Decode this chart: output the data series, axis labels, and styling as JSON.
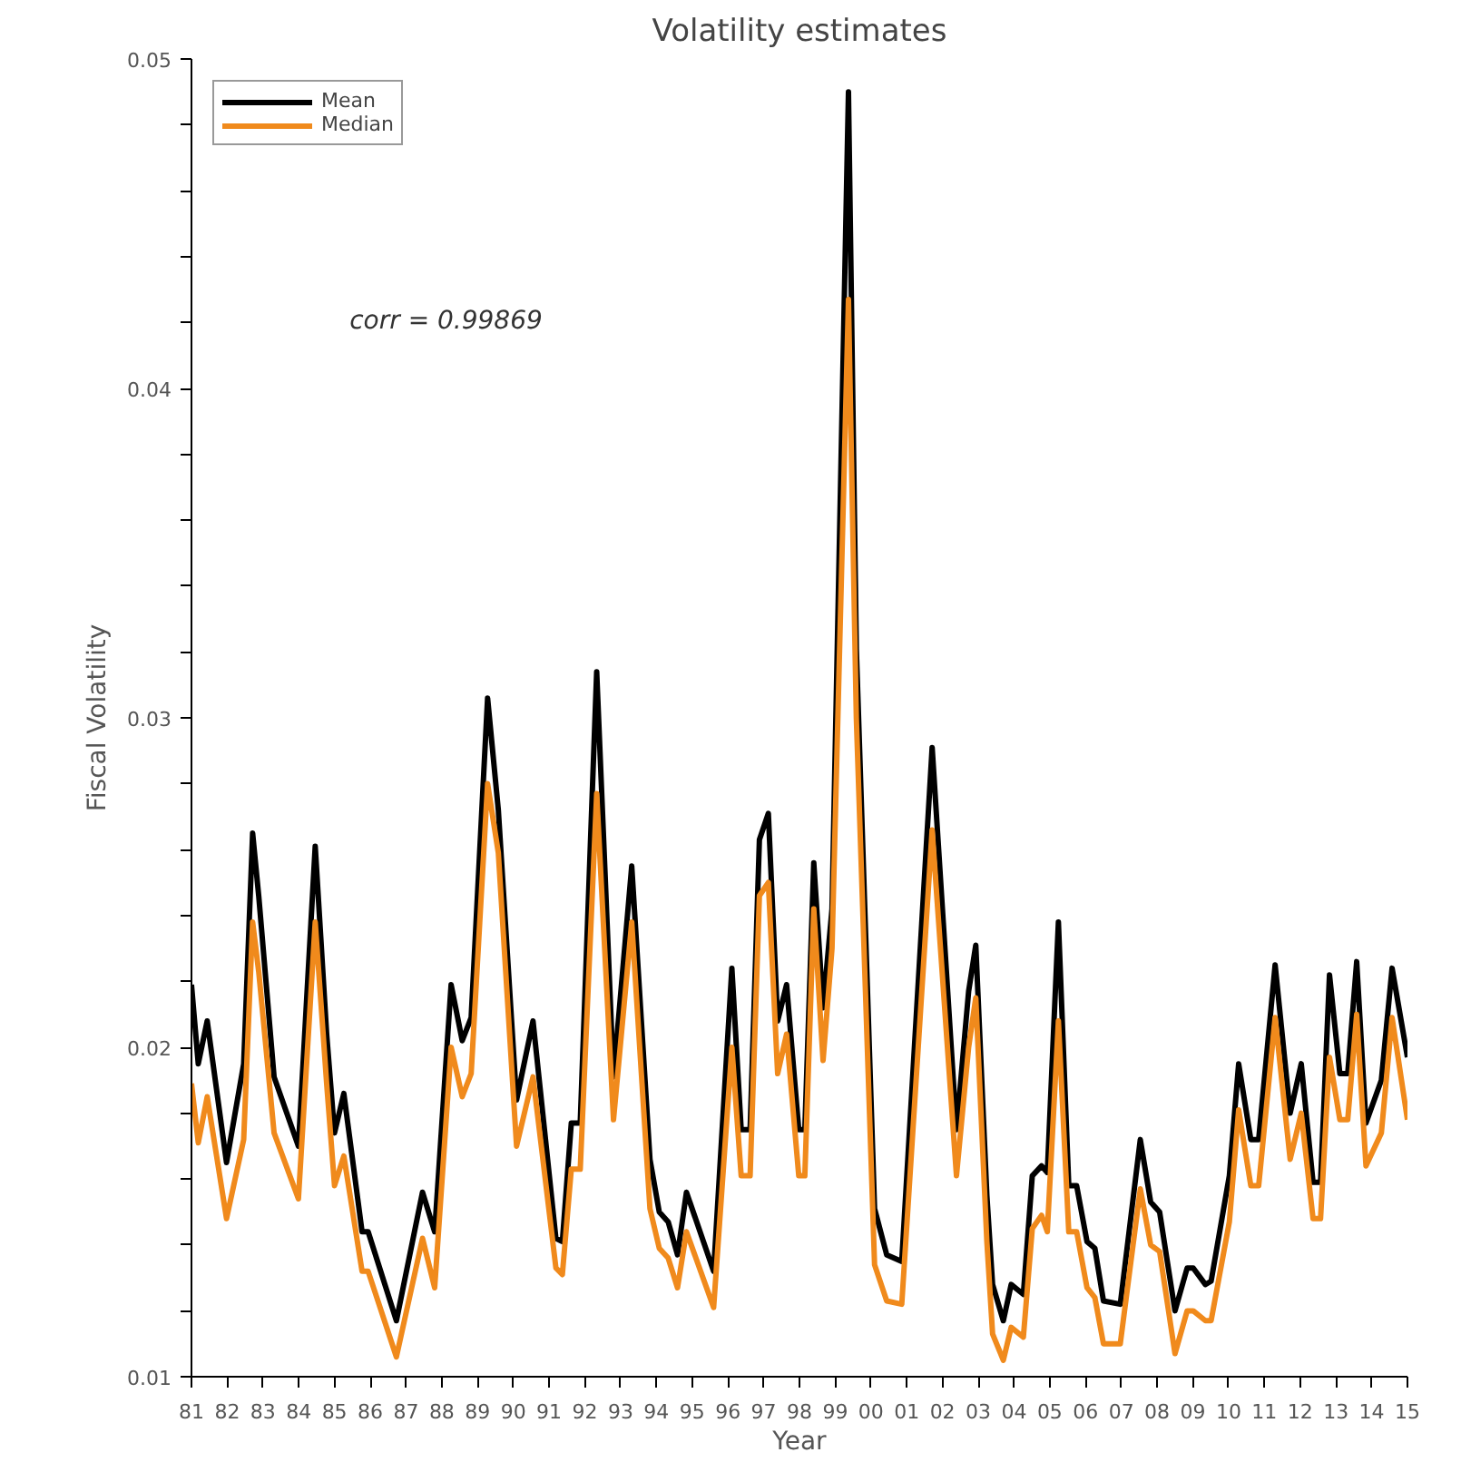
{
  "chart_data": {
    "type": "line",
    "title": "Volatility estimates",
    "xlabel": "Year",
    "ylabel": "Fiscal Volatility",
    "annotations": [
      "corr = 0.99869"
    ],
    "legend": "top left",
    "grid": false,
    "marker": "none",
    "line_style": "solid",
    "xlim": [
      1981,
      2015
    ],
    "ylim": [
      0.01,
      0.05
    ],
    "xticks": [
      {
        "value": 1981,
        "label": "81"
      },
      {
        "value": 1982,
        "label": "82"
      },
      {
        "value": 1983,
        "label": "83"
      },
      {
        "value": 1984,
        "label": "84"
      },
      {
        "value": 1985,
        "label": "85"
      },
      {
        "value": 1986,
        "label": "86"
      },
      {
        "value": 1987,
        "label": "87"
      },
      {
        "value": 1988,
        "label": "88"
      },
      {
        "value": 1989,
        "label": "89"
      },
      {
        "value": 1990,
        "label": "90"
      },
      {
        "value": 1991,
        "label": "91"
      },
      {
        "value": 1992,
        "label": "92"
      },
      {
        "value": 1993,
        "label": "93"
      },
      {
        "value": 1994,
        "label": "94"
      },
      {
        "value": 1995,
        "label": "95"
      },
      {
        "value": 1996,
        "label": "96"
      },
      {
        "value": 1997,
        "label": "97"
      },
      {
        "value": 1998,
        "label": "98"
      },
      {
        "value": 1999,
        "label": "99"
      },
      {
        "value": 2000,
        "label": "00"
      },
      {
        "value": 2001,
        "label": "01"
      },
      {
        "value": 2002,
        "label": "02"
      },
      {
        "value": 2003,
        "label": "03"
      },
      {
        "value": 2004,
        "label": "04"
      },
      {
        "value": 2005,
        "label": "05"
      },
      {
        "value": 2006,
        "label": "06"
      },
      {
        "value": 2007,
        "label": "07"
      },
      {
        "value": 2008,
        "label": "08"
      },
      {
        "value": 2009,
        "label": "09"
      },
      {
        "value": 2010,
        "label": "10"
      },
      {
        "value": 2011,
        "label": "11"
      },
      {
        "value": 2012,
        "label": "12"
      },
      {
        "value": 2013,
        "label": "13"
      },
      {
        "value": 2014,
        "label": "14"
      },
      {
        "value": 2015,
        "label": "15"
      }
    ],
    "yticks": [
      0.01,
      {
        "value": 0.012,
        "label": null
      },
      {
        "value": 0.014,
        "label": null
      },
      {
        "value": 0.016,
        "label": null
      },
      {
        "value": 0.018,
        "label": null
      },
      0.02,
      {
        "value": 0.022,
        "label": null
      },
      {
        "value": 0.024,
        "label": null
      },
      {
        "value": 0.026,
        "label": null
      },
      {
        "value": 0.028,
        "label": null
      },
      0.03,
      {
        "value": 0.032,
        "label": null
      },
      {
        "value": 0.034,
        "label": null
      },
      {
        "value": 0.036,
        "label": null
      },
      {
        "value": 0.038,
        "label": null
      },
      0.04,
      {
        "value": 0.042,
        "label": null
      },
      {
        "value": 0.044,
        "label": null
      },
      {
        "value": 0.046,
        "label": null
      },
      {
        "value": 0.048,
        "label": null
      },
      0.05
    ],
    "x": [
      1981.0,
      1981.19,
      1981.44,
      1981.98,
      1982.46,
      1982.71,
      1982.88,
      1983.31,
      1983.99,
      1984.46,
      1984.78,
      1985.0,
      1985.26,
      1985.77,
      1985.94,
      1986.73,
      1987.46,
      1987.8,
      1988.26,
      1988.57,
      1988.82,
      1989.28,
      1989.58,
      1990.09,
      1990.55,
      1991.19,
      1991.37,
      1991.62,
      1991.87,
      1992.33,
      1992.8,
      1993.31,
      1993.82,
      1994.08,
      1994.33,
      1994.59,
      1994.84,
      1995.6,
      1996.11,
      1996.37,
      1996.62,
      1996.88,
      1997.13,
      1997.39,
      1997.64,
      1997.98,
      1998.15,
      1998.4,
      1998.66,
      1998.91,
      1999.37,
      1999.59,
      2000.1,
      2000.44,
      2000.86,
      2001.71,
      2002.39,
      2002.73,
      2002.93,
      2003.24,
      2003.4,
      2003.7,
      2003.92,
      2004.26,
      2004.51,
      2004.77,
      2004.93,
      2005.24,
      2005.53,
      2005.75,
      2006.04,
      2006.26,
      2006.5,
      2006.97,
      2007.53,
      2007.82,
      2008.07,
      2008.5,
      2008.84,
      2009.01,
      2009.35,
      2009.51,
      2010.02,
      2010.28,
      2010.62,
      2010.84,
      2011.3,
      2011.72,
      2012.03,
      2012.36,
      2012.57,
      2012.82,
      2013.11,
      2013.33,
      2013.58,
      2013.84,
      2014.27,
      2014.57,
      2015.0
    ],
    "series": [
      {
        "name": "Mean",
        "color": "#000000",
        "values": [
          0.0219,
          0.0195,
          0.0208,
          0.0165,
          0.0195,
          0.0265,
          0.0246,
          0.0191,
          0.017,
          0.0261,
          0.0204,
          0.0174,
          0.0186,
          0.0144,
          0.0144,
          0.0117,
          0.0156,
          0.0144,
          0.0219,
          0.0202,
          0.0209,
          0.0306,
          0.0272,
          0.0184,
          0.0208,
          0.0142,
          0.0141,
          0.0177,
          0.0177,
          0.0314,
          0.0191,
          0.0255,
          0.0166,
          0.015,
          0.0147,
          0.0137,
          0.0156,
          0.0132,
          0.0224,
          0.0175,
          0.0175,
          0.0263,
          0.0271,
          0.0208,
          0.0219,
          0.0175,
          0.0175,
          0.0256,
          0.0212,
          0.0242,
          0.049,
          0.0321,
          0.0151,
          0.0137,
          0.0135,
          0.0291,
          0.0175,
          0.0217,
          0.0231,
          0.0155,
          0.0128,
          0.0117,
          0.0128,
          0.0125,
          0.0161,
          0.0164,
          0.0162,
          0.0238,
          0.0158,
          0.0158,
          0.0141,
          0.0139,
          0.0123,
          0.0122,
          0.0172,
          0.0153,
          0.015,
          0.012,
          0.0133,
          0.0133,
          0.0128,
          0.0129,
          0.0161,
          0.0195,
          0.0172,
          0.0172,
          0.0225,
          0.018,
          0.0195,
          0.0159,
          0.0159,
          0.0222,
          0.0192,
          0.0192,
          0.0226,
          0.0177,
          0.019,
          0.0224,
          0.0197
        ]
      },
      {
        "name": "Median",
        "color": "#f08a1c",
        "values": [
          0.0189,
          0.0171,
          0.0185,
          0.0148,
          0.0172,
          0.0238,
          0.0223,
          0.0174,
          0.0154,
          0.0238,
          0.0189,
          0.0158,
          0.0167,
          0.0132,
          0.0132,
          0.0106,
          0.0142,
          0.0127,
          0.02,
          0.0185,
          0.0192,
          0.028,
          0.0259,
          0.017,
          0.0191,
          0.0133,
          0.0131,
          0.0163,
          0.0163,
          0.0277,
          0.0178,
          0.0238,
          0.0151,
          0.0139,
          0.0136,
          0.0127,
          0.0144,
          0.0121,
          0.02,
          0.0161,
          0.0161,
          0.0246,
          0.025,
          0.0192,
          0.0204,
          0.0161,
          0.0161,
          0.0242,
          0.0196,
          0.023,
          0.0427,
          0.03,
          0.0134,
          0.0123,
          0.0122,
          0.0266,
          0.0161,
          0.02,
          0.0215,
          0.0141,
          0.0113,
          0.0105,
          0.0115,
          0.0112,
          0.0145,
          0.0149,
          0.0144,
          0.0208,
          0.0144,
          0.0144,
          0.0127,
          0.0124,
          0.011,
          0.011,
          0.0157,
          0.014,
          0.0138,
          0.0107,
          0.012,
          0.012,
          0.0117,
          0.0117,
          0.0147,
          0.0181,
          0.0158,
          0.0158,
          0.0209,
          0.0166,
          0.018,
          0.0148,
          0.0148,
          0.0197,
          0.0178,
          0.0178,
          0.021,
          0.0164,
          0.0174,
          0.0209,
          0.0178
        ]
      }
    ]
  }
}
